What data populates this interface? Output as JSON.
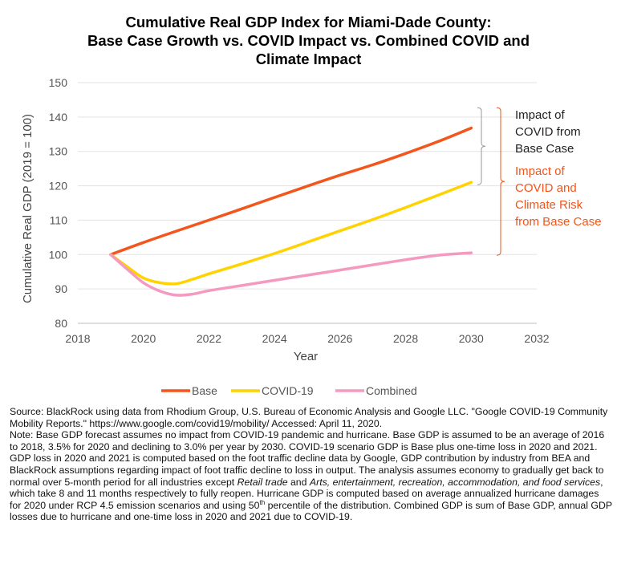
{
  "title_lines": [
    "Cumulative Real GDP Index for Miami-Dade County:",
    "Base Case Growth vs. COVID Impact vs. Combined COVID and",
    "Climate Impact"
  ],
  "chart_data": {
    "type": "line",
    "xlabel": "Year",
    "ylabel": "Cumulative Real GDP (2019 = 100)",
    "xlim": [
      2018,
      2032
    ],
    "ylim": [
      80,
      150
    ],
    "xticks": [
      2018,
      2020,
      2022,
      2024,
      2026,
      2028,
      2030,
      2032
    ],
    "yticks": [
      80,
      90,
      100,
      110,
      120,
      130,
      140,
      150
    ],
    "grid": "horizontal",
    "legend_position": "bottom",
    "series": [
      {
        "name": "Base",
        "color": "#f2561d",
        "x": [
          2019,
          2020,
          2021,
          2022,
          2023,
          2024,
          2025,
          2026,
          2027,
          2028,
          2029,
          2030
        ],
        "y": [
          100.0,
          103.5,
          106.8,
          110.0,
          113.3,
          116.6,
          119.9,
          123.1,
          126.1,
          129.4,
          132.9,
          136.8
        ]
      },
      {
        "name": "COVID-19",
        "color": "#ffd200",
        "x": [
          2019,
          2019.5,
          2020,
          2020.5,
          2021,
          2021.5,
          2022,
          2023,
          2024,
          2025,
          2026,
          2027,
          2028,
          2029,
          2030
        ],
        "y": [
          100.0,
          96.5,
          93.2,
          91.8,
          91.5,
          92.8,
          94.4,
          97.3,
          100.3,
          103.6,
          106.9,
          110.2,
          113.7,
          117.3,
          121.0
        ]
      },
      {
        "name": "Combined",
        "color": "#f49ac1",
        "x": [
          2019,
          2019.5,
          2020,
          2020.5,
          2021,
          2021.5,
          2022,
          2023,
          2024,
          2025,
          2026,
          2027,
          2028,
          2029,
          2030
        ],
        "y": [
          100.0,
          95.8,
          91.8,
          89.4,
          88.2,
          88.5,
          89.5,
          91.0,
          92.5,
          94.0,
          95.5,
          97.0,
          98.5,
          99.8,
          100.5
        ]
      }
    ],
    "annotations": [
      {
        "lines": [
          "Impact of",
          "COVID from",
          "Base Case"
        ],
        "color": "#231f20",
        "from": 142.0,
        "to": 121.0
      },
      {
        "lines": [
          "Impact of",
          "COVID and",
          "Climate Risk",
          "from Base Case"
        ],
        "color": "#f2561d",
        "from": 142.0,
        "to": 100.5
      }
    ]
  },
  "source_text": {
    "p1": "Source: BlackRock using data from Rhodium Group, U.S. Bureau of Economic Analysis and Google LLC. \"Google COVID-19 Community Mobility Reports.\" https://www.google.com/covid19/mobility/ Accessed: April 11, 2020.",
    "p2_a": "Note: Base GDP forecast assumes no impact from COVID-19 pandemic and hurricane. Base GDP is assumed to be an average of 2016 to 2018, 3.5% for 2020 and declining to 3.0% per year by 2030. COVID-19 scenario GDP is Base plus one-time loss in 2020 and 2021. GDP loss in 2020 and 2021 is computed based on the foot traffic decline data by Google, GDP contribution by industry from BEA and BlackRock assumptions regarding impact of foot traffic decline to loss in output. The analysis assumes economy to gradually get back to normal over 5-month period for all industries except ",
    "p2_italic1": "Retail trade",
    "p2_b": " and ",
    "p2_italic2": "Arts, entertainment, recreation, accommodation, and food services",
    "p2_c": ", which take 8 and 11 months respectively to fully reopen. Hurricane GDP is computed based on average annualized hurricane damages for 2020 under RCP 4.5 emission scenarios and using 50",
    "p2_sup": "th",
    "p2_d": " percentile of the distribution. Combined GDP is sum of Base GDP, annual GDP losses due to hurricane and one-time loss in 2020 and 2021 due to COVID-19."
  }
}
